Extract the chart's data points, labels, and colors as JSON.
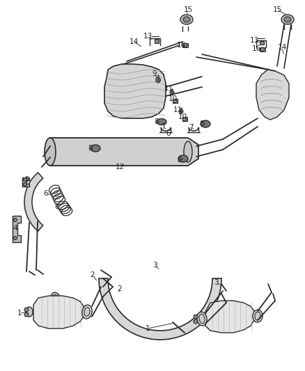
{
  "bg_color": "#ffffff",
  "line_color": "#2a2a2a",
  "figsize": [
    4.38,
    5.33
  ],
  "dpi": 100,
  "label_positions": [
    [
      "15",
      270,
      18
    ],
    [
      "13",
      218,
      52
    ],
    [
      "14",
      195,
      60
    ],
    [
      "16",
      267,
      65
    ],
    [
      "9",
      227,
      108
    ],
    [
      "11",
      247,
      128
    ],
    [
      "10",
      252,
      142
    ],
    [
      "11",
      258,
      158
    ],
    [
      "10",
      265,
      168
    ],
    [
      "8",
      232,
      175
    ],
    [
      "7",
      238,
      183
    ],
    [
      "6",
      245,
      192
    ],
    [
      "7",
      278,
      183
    ],
    [
      "8",
      295,
      178
    ],
    [
      "12",
      175,
      238
    ],
    [
      "8",
      137,
      212
    ],
    [
      "8",
      265,
      228
    ],
    [
      "6",
      72,
      278
    ],
    [
      "6",
      88,
      295
    ],
    [
      "5",
      43,
      262
    ],
    [
      "4",
      28,
      328
    ],
    [
      "2",
      140,
      398
    ],
    [
      "2",
      175,
      418
    ],
    [
      "3",
      228,
      383
    ],
    [
      "1",
      35,
      450
    ],
    [
      "1",
      218,
      472
    ],
    [
      "3",
      318,
      408
    ],
    [
      "15",
      398,
      18
    ],
    [
      "13",
      372,
      58
    ],
    [
      "16",
      375,
      70
    ],
    [
      "14",
      408,
      68
    ]
  ]
}
